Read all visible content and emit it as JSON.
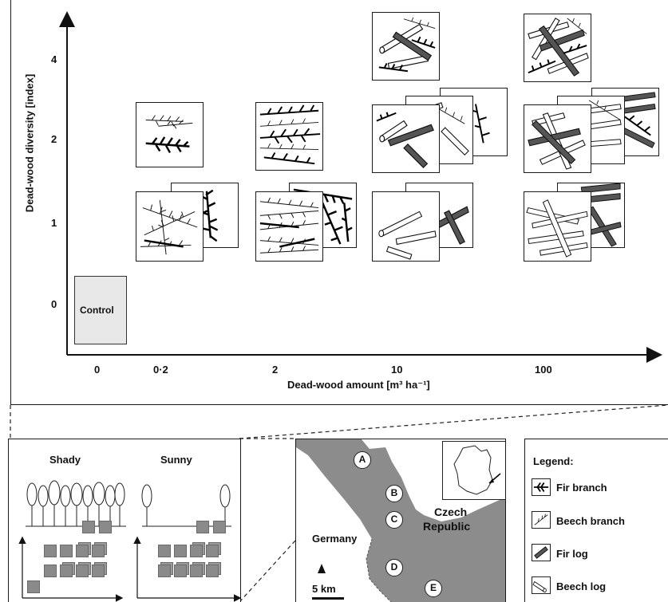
{
  "figure": {
    "y_axis_label": "Dead-wood diversity [index]",
    "x_axis_label": "Dead-wood amount [m³ ha⁻¹]",
    "y_ticks": [
      "4",
      "2",
      "1",
      "0"
    ],
    "x_ticks": [
      "0",
      "0·2",
      "2",
      "10",
      "100"
    ],
    "control_label": "Control"
  },
  "light_panel": {
    "shady_label": "Shady",
    "sunny_label": "Sunny"
  },
  "map": {
    "country_left": "Germany",
    "country_right_1": "Czech",
    "country_right_2": "Republic",
    "sites": [
      "A",
      "B",
      "C",
      "D",
      "E"
    ],
    "scale_label": "5 km"
  },
  "legend": {
    "title": "Legend:",
    "items": [
      "Fir branch",
      "Beech branch",
      "Fir log",
      "Beech log"
    ]
  },
  "colors": {
    "map_land": "#8c8c8c",
    "tile_border": "#1a1a1a",
    "control_fill": "#e8e8e8",
    "plot_square": "#8a8a8a"
  }
}
